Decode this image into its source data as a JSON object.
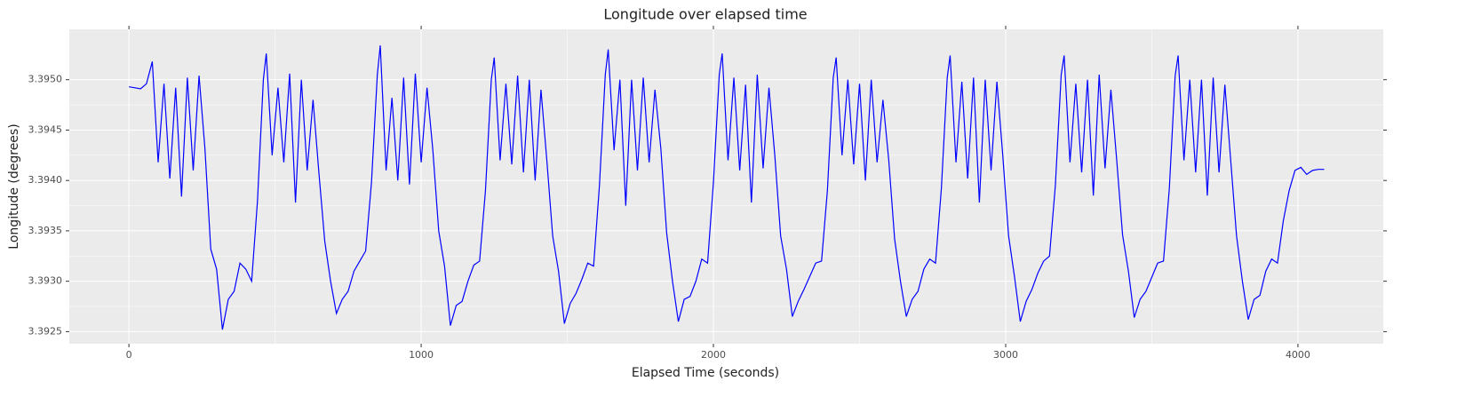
{
  "chart_data": {
    "type": "line",
    "title": "Longitude over elapsed time",
    "x_label": "Elapsed Time (seconds)",
    "y_label": "Longitude (degrees)",
    "xlim": [
      -204,
      4292
    ],
    "ylim": [
      3.39238,
      3.3955
    ],
    "xticks": [
      0,
      1000,
      2000,
      3000,
      4000
    ],
    "yticks": [
      {
        "value": 3.3925,
        "label": "3.3925"
      },
      {
        "value": 3.393,
        "label": "3.3930"
      },
      {
        "value": 3.3935,
        "label": "3.3935"
      },
      {
        "value": 3.394,
        "label": "3.3940"
      },
      {
        "value": 3.3945,
        "label": "3.3945"
      },
      {
        "value": 3.395,
        "label": "3.3950"
      }
    ],
    "grid": true,
    "series": [
      {
        "color": "#0000ff",
        "x": [
          0,
          20,
          40,
          60,
          80,
          100,
          120,
          140,
          160,
          180,
          200,
          220,
          240,
          260,
          280,
          300,
          320,
          340,
          360,
          380,
          400,
          420,
          440,
          460,
          470,
          490,
          510,
          530,
          550,
          570,
          590,
          610,
          630,
          650,
          670,
          690,
          710,
          730,
          750,
          770,
          790,
          810,
          830,
          850,
          860,
          880,
          900,
          920,
          940,
          960,
          980,
          1000,
          1020,
          1040,
          1060,
          1080,
          1100,
          1120,
          1140,
          1160,
          1180,
          1200,
          1220,
          1240,
          1250,
          1270,
          1290,
          1310,
          1330,
          1350,
          1370,
          1390,
          1410,
          1430,
          1450,
          1470,
          1490,
          1510,
          1530,
          1550,
          1570,
          1590,
          1610,
          1630,
          1640,
          1660,
          1680,
          1700,
          1720,
          1740,
          1760,
          1780,
          1800,
          1820,
          1840,
          1860,
          1880,
          1900,
          1920,
          1940,
          1960,
          1980,
          2000,
          2020,
          2030,
          2050,
          2070,
          2090,
          2110,
          2130,
          2150,
          2170,
          2190,
          2210,
          2230,
          2250,
          2270,
          2290,
          2310,
          2330,
          2350,
          2370,
          2390,
          2410,
          2420,
          2440,
          2460,
          2480,
          2500,
          2520,
          2540,
          2560,
          2580,
          2600,
          2620,
          2640,
          2660,
          2680,
          2700,
          2720,
          2740,
          2760,
          2780,
          2800,
          2810,
          2830,
          2850,
          2870,
          2890,
          2910,
          2930,
          2950,
          2970,
          2990,
          3010,
          3030,
          3050,
          3070,
          3090,
          3110,
          3130,
          3150,
          3170,
          3190,
          3200,
          3220,
          3240,
          3260,
          3280,
          3300,
          3320,
          3340,
          3360,
          3380,
          3400,
          3420,
          3440,
          3460,
          3480,
          3500,
          3520,
          3540,
          3560,
          3580,
          3590,
          3610,
          3630,
          3650,
          3670,
          3690,
          3710,
          3730,
          3750,
          3770,
          3790,
          3810,
          3830,
          3850,
          3870,
          3890,
          3910,
          3930,
          3950,
          3970,
          3990,
          4010,
          4030,
          4050,
          4070,
          4090
        ],
        "values": [
          3.39493,
          3.39492,
          3.39491,
          3.39496,
          3.39518,
          3.39418,
          3.39496,
          3.39402,
          3.39492,
          3.39384,
          3.39502,
          3.3941,
          3.39504,
          3.39432,
          3.39332,
          3.39312,
          3.39252,
          3.39282,
          3.3929,
          3.39318,
          3.39312,
          3.393,
          3.3938,
          3.395,
          3.39526,
          3.39425,
          3.39492,
          3.39418,
          3.39506,
          3.39378,
          3.395,
          3.3941,
          3.3948,
          3.39408,
          3.3934,
          3.393,
          3.39268,
          3.39282,
          3.3929,
          3.3931,
          3.3932,
          3.3933,
          3.39398,
          3.39505,
          3.39534,
          3.3941,
          3.39482,
          3.394,
          3.39502,
          3.39396,
          3.39506,
          3.39418,
          3.39492,
          3.3943,
          3.3935,
          3.39315,
          3.39256,
          3.39276,
          3.3928,
          3.393,
          3.39316,
          3.3932,
          3.3939,
          3.395,
          3.39522,
          3.3942,
          3.39496,
          3.39416,
          3.39504,
          3.39408,
          3.395,
          3.394,
          3.3949,
          3.3942,
          3.39345,
          3.3931,
          3.39258,
          3.39278,
          3.39288,
          3.39302,
          3.39318,
          3.39315,
          3.39395,
          3.39505,
          3.3953,
          3.3943,
          3.395,
          3.39375,
          3.395,
          3.3941,
          3.39502,
          3.39418,
          3.3949,
          3.39432,
          3.39348,
          3.393,
          3.3926,
          3.39282,
          3.39285,
          3.393,
          3.39322,
          3.39318,
          3.39398,
          3.39505,
          3.39526,
          3.3942,
          3.39502,
          3.3941,
          3.39495,
          3.39378,
          3.39505,
          3.39412,
          3.39492,
          3.39425,
          3.39345,
          3.39312,
          3.39265,
          3.3928,
          3.39292,
          3.39305,
          3.39318,
          3.3932,
          3.3939,
          3.39502,
          3.39522,
          3.39425,
          3.395,
          3.39416,
          3.39496,
          3.394,
          3.395,
          3.39418,
          3.3948,
          3.3942,
          3.39342,
          3.393,
          3.39265,
          3.39282,
          3.3929,
          3.39312,
          3.39322,
          3.39318,
          3.39392,
          3.39502,
          3.39524,
          3.39418,
          3.39498,
          3.39402,
          3.39502,
          3.39378,
          3.395,
          3.3941,
          3.39498,
          3.39425,
          3.39345,
          3.39305,
          3.3926,
          3.3928,
          3.39292,
          3.39308,
          3.3932,
          3.39325,
          3.39395,
          3.39505,
          3.39524,
          3.39418,
          3.39496,
          3.39408,
          3.395,
          3.39385,
          3.39505,
          3.39412,
          3.3949,
          3.3942,
          3.39346,
          3.3931,
          3.39264,
          3.39282,
          3.3929,
          3.39304,
          3.39318,
          3.3932,
          3.39392,
          3.39504,
          3.39524,
          3.3942,
          3.395,
          3.39408,
          3.395,
          3.39385,
          3.39502,
          3.39408,
          3.39495,
          3.3942,
          3.39345,
          3.393,
          3.39262,
          3.39282,
          3.39286,
          3.3931,
          3.39322,
          3.39318,
          3.3936,
          3.3939,
          3.3941,
          3.39413,
          3.39406,
          3.3941,
          3.39411,
          3.39411
        ]
      }
    ]
  }
}
